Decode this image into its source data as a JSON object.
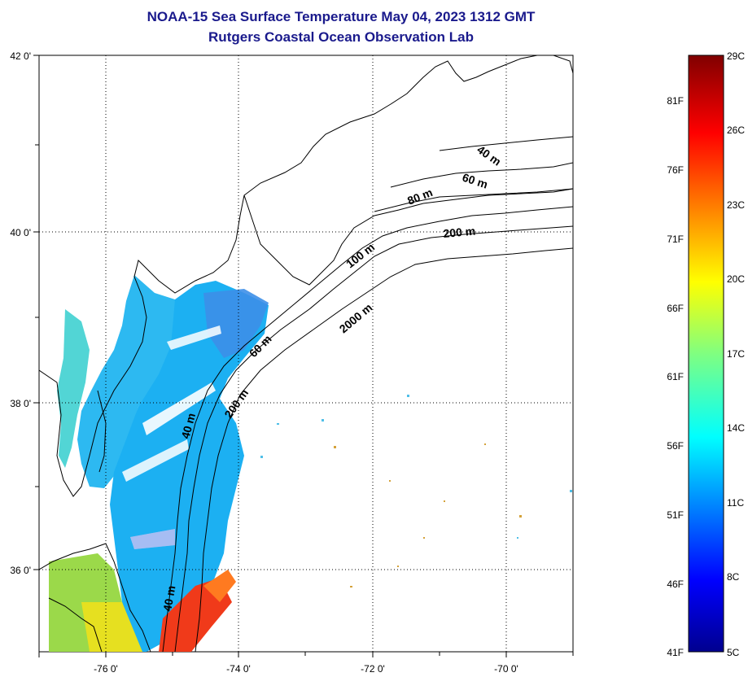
{
  "header": {
    "title": "NOAA-15 Sea Surface Temperature May 04, 2023 1312 GMT",
    "subtitle": "Rutgers Coastal Ocean Observation Lab"
  },
  "map": {
    "lat_labels": [
      "42 0'",
      "40 0'",
      "38 0'",
      "36 0'"
    ],
    "lon_labels": [
      "-76 0'",
      "-74 0'",
      "-72 0'",
      "-70 0'"
    ],
    "lon_range": [
      -77,
      -69
    ],
    "lat_range": [
      35,
      42
    ],
    "bathymetry_labels": [
      "40 m",
      "60 m",
      "80 m",
      "200 m",
      "100 m",
      "2000 m",
      "60 m",
      "200 m",
      "40 m",
      "40 m"
    ]
  },
  "colorbar": {
    "celsius_labels": [
      "29C",
      "26C",
      "23C",
      "20C",
      "17C",
      "14C",
      "11C",
      "8C",
      "5C"
    ],
    "fahrenheit_labels": [
      "81F",
      "76F",
      "71F",
      "66F",
      "61F",
      "56F",
      "51F",
      "46F",
      "41F"
    ],
    "min_c": 5,
    "max_c": 29
  }
}
